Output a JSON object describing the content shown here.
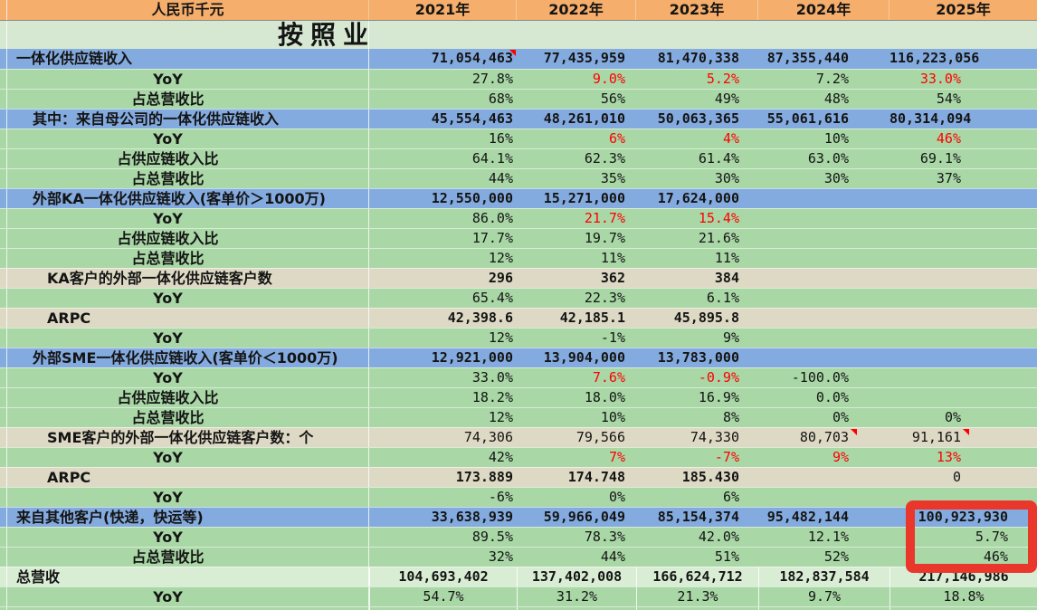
{
  "meta": {
    "unit_label": "人民币千元",
    "title": "按照业"
  },
  "columns": [
    "2021年",
    "2022年",
    "2023年",
    "2024年",
    "2025年"
  ],
  "colors": {
    "header_bg": "#f5ae6b",
    "title_row_bg": "#d6e8d1",
    "section_row_bg": "#84abdf",
    "metric_row_bg": "#a9d7a6",
    "count_row_bg": "#ddd9c4",
    "total_row_bg": "#d9edd4",
    "negative_text": "#ff0000",
    "comment_marker": "#ff0000",
    "annotation_box": "#ea372b",
    "text": "#141414"
  },
  "rows": [
    {
      "label": "一体化供应链收入",
      "style": "sec",
      "bg": "blue",
      "cells": [
        {
          "t": "71,054,463",
          "b": 1,
          "tri": 1
        },
        {
          "t": "77,435,959",
          "b": 1
        },
        {
          "t": "81,470,338",
          "b": 1
        },
        {
          "t": "87,355,440",
          "b": 1
        },
        {
          "t": "116,223,056",
          "b": 1
        }
      ]
    },
    {
      "label": "YoY",
      "style": "met",
      "bg": "green",
      "cells": [
        {
          "t": "27.8%"
        },
        {
          "t": "9.0%",
          "r": 1
        },
        {
          "t": "5.2%",
          "r": 1
        },
        {
          "t": "7.2%"
        },
        {
          "t": "33.0%",
          "r": 1
        }
      ]
    },
    {
      "label": "占总营收比",
      "style": "met",
      "bg": "green",
      "cells": [
        {
          "t": "68%"
        },
        {
          "t": "56%"
        },
        {
          "t": "49%"
        },
        {
          "t": "48%"
        },
        {
          "t": "54%"
        }
      ]
    },
    {
      "label": "其中：来自母公司的一体化供应链收入",
      "style": "sub",
      "bg": "blue",
      "cells": [
        {
          "t": "45,554,463",
          "b": 1
        },
        {
          "t": "48,261,010",
          "b": 1
        },
        {
          "t": "50,063,365",
          "b": 1
        },
        {
          "t": "55,061,616",
          "b": 1
        },
        {
          "t": "80,314,094",
          "b": 1
        }
      ]
    },
    {
      "label": "YoY",
      "style": "met",
      "bg": "green",
      "cells": [
        {
          "t": "16%"
        },
        {
          "t": "6%",
          "r": 1
        },
        {
          "t": "4%",
          "r": 1
        },
        {
          "t": "10%"
        },
        {
          "t": "46%",
          "r": 1
        }
      ]
    },
    {
      "label": "占供应链收入比",
      "style": "met",
      "bg": "green",
      "cells": [
        {
          "t": "64.1%"
        },
        {
          "t": "62.3%"
        },
        {
          "t": "61.4%"
        },
        {
          "t": "63.0%"
        },
        {
          "t": "69.1%"
        }
      ]
    },
    {
      "label": "占总营收比",
      "style": "met",
      "bg": "green",
      "cells": [
        {
          "t": "44%"
        },
        {
          "t": "35%"
        },
        {
          "t": "30%"
        },
        {
          "t": "30%"
        },
        {
          "t": "37%"
        }
      ]
    },
    {
      "label": "外部KA一体化供应链收入(客单价＞1000万)",
      "style": "sub",
      "bg": "blue",
      "cells": [
        {
          "t": "12,550,000",
          "b": 1
        },
        {
          "t": "15,271,000",
          "b": 1
        },
        {
          "t": "17,624,000",
          "b": 1
        },
        null,
        null
      ]
    },
    {
      "label": "YoY",
      "style": "met",
      "bg": "green",
      "cells": [
        {
          "t": "86.0%"
        },
        {
          "t": "21.7%",
          "r": 1
        },
        {
          "t": "15.4%",
          "r": 1
        },
        null,
        null
      ]
    },
    {
      "label": "占供应链收入比",
      "style": "met",
      "bg": "green",
      "cells": [
        {
          "t": "17.7%"
        },
        {
          "t": "19.7%"
        },
        {
          "t": "21.6%"
        },
        null,
        null
      ]
    },
    {
      "label": "占总营收比",
      "style": "met",
      "bg": "green",
      "cells": [
        {
          "t": "12%"
        },
        {
          "t": "11%"
        },
        {
          "t": "11%"
        },
        null,
        null
      ]
    },
    {
      "label": "KA客户的外部一体化供应链客户数",
      "style": "cnt",
      "bg": "beige",
      "cells": [
        {
          "t": "296",
          "b": 1
        },
        {
          "t": "362",
          "b": 1
        },
        {
          "t": "384",
          "b": 1
        },
        null,
        null
      ]
    },
    {
      "label": "YoY",
      "style": "met",
      "bg": "green",
      "cells": [
        {
          "t": "65.4%"
        },
        {
          "t": "22.3%"
        },
        {
          "t": "6.1%"
        },
        null,
        null
      ]
    },
    {
      "label": "ARPC",
      "style": "cnt",
      "bg": "beige",
      "cells": [
        {
          "t": "42,398.6",
          "b": 1
        },
        {
          "t": "42,185.1",
          "b": 1
        },
        {
          "t": "45,895.8",
          "b": 1
        },
        null,
        null
      ]
    },
    {
      "label": "YoY",
      "style": "met",
      "bg": "green",
      "cells": [
        {
          "t": "12%"
        },
        {
          "t": "-1%"
        },
        {
          "t": "9%"
        },
        null,
        null
      ]
    },
    {
      "label": "外部SME一体化供应链收入(客单价＜1000万)",
      "style": "sub",
      "bg": "blue",
      "cells": [
        {
          "t": "12,921,000",
          "b": 1
        },
        {
          "t": "13,904,000",
          "b": 1
        },
        {
          "t": "13,783,000",
          "b": 1
        },
        null,
        null
      ]
    },
    {
      "label": "YoY",
      "style": "met",
      "bg": "green",
      "cells": [
        {
          "t": "33.0%"
        },
        {
          "t": "7.6%",
          "r": 1
        },
        {
          "t": "-0.9%",
          "r": 1
        },
        {
          "t": "-100.0%"
        },
        null
      ]
    },
    {
      "label": "占供应链收入比",
      "style": "met",
      "bg": "green",
      "cells": [
        {
          "t": "18.2%"
        },
        {
          "t": "18.0%"
        },
        {
          "t": "16.9%"
        },
        {
          "t": "0.0%"
        },
        null
      ]
    },
    {
      "label": "占总营收比",
      "style": "met",
      "bg": "green",
      "cells": [
        {
          "t": "12%"
        },
        {
          "t": "10%"
        },
        {
          "t": "8%"
        },
        {
          "t": "0%"
        },
        {
          "t": "0%"
        }
      ]
    },
    {
      "label": "SME客户的外部一体化供应链客户数：个",
      "style": "cnt",
      "bg": "beige",
      "cells": [
        {
          "t": "74,306"
        },
        {
          "t": "79,566"
        },
        {
          "t": "74,330"
        },
        {
          "t": "80,703",
          "tri": 36
        },
        {
          "t": "91,161",
          "tri": 75
        }
      ]
    },
    {
      "label": "YoY",
      "style": "met",
      "bg": "green",
      "cells": [
        {
          "t": "42%"
        },
        {
          "t": "7%",
          "r": 1
        },
        {
          "t": "-7%",
          "r": 1
        },
        {
          "t": "9%",
          "r": 1
        },
        {
          "t": "13%",
          "r": 1
        }
      ]
    },
    {
      "label": "ARPC",
      "style": "cnt",
      "bg": "beige",
      "cells": [
        {
          "t": "173.889",
          "b": 1
        },
        {
          "t": "174.748",
          "b": 1
        },
        {
          "t": "185.430",
          "b": 1
        },
        null,
        {
          "t": "0"
        }
      ]
    },
    {
      "label": "YoY",
      "style": "met",
      "bg": "green",
      "cells": [
        {
          "t": "-6%"
        },
        {
          "t": "0%"
        },
        {
          "t": "6%"
        },
        null,
        null
      ]
    },
    {
      "label": "来自其他客户(快递，快运等)",
      "style": "sec",
      "bg": "blue",
      "cells": [
        {
          "t": "33,638,939",
          "b": 1
        },
        {
          "t": "59,966,049",
          "b": 1
        },
        {
          "t": "85,154,374",
          "b": 1
        },
        {
          "t": "95,482,144",
          "b": 1
        },
        {
          "t": "100,923,930",
          "b": 1,
          "pad": 1
        }
      ]
    },
    {
      "label": "YoY",
      "style": "met",
      "bg": "green",
      "cells": [
        {
          "t": "89.5%"
        },
        {
          "t": "78.3%"
        },
        {
          "t": "42.0%"
        },
        {
          "t": "12.1%"
        },
        {
          "t": "5.7%",
          "pad": 1
        }
      ]
    },
    {
      "label": "占总营收比",
      "style": "met",
      "bg": "green",
      "cells": [
        {
          "t": "32%"
        },
        {
          "t": "44%"
        },
        {
          "t": "51%"
        },
        {
          "t": "52%"
        },
        {
          "t": "46%",
          "pad": 1
        }
      ]
    },
    {
      "label": "总营收",
      "style": "total",
      "bg": "light",
      "grid": 1,
      "center": 1,
      "cells": [
        {
          "t": "104,693,402",
          "b": 1
        },
        {
          "t": "137,402,008",
          "b": 1
        },
        {
          "t": "166,624,712",
          "b": 1
        },
        {
          "t": "182,837,584",
          "b": 1
        },
        {
          "t": "217,146,986",
          "b": 1
        }
      ]
    },
    {
      "label": "YoY",
      "style": "met",
      "bg": "green",
      "grid": 1,
      "center": 1,
      "cells": [
        {
          "t": "54.7%"
        },
        {
          "t": "31.2%"
        },
        {
          "t": "21.3%"
        },
        {
          "t": "9.7%"
        },
        {
          "t": "18.8%"
        }
      ]
    },
    {
      "label": "",
      "style": "met",
      "bg": "green",
      "grid": 1,
      "partial": 1,
      "cells": [
        null,
        null,
        null,
        null,
        null
      ]
    }
  ]
}
